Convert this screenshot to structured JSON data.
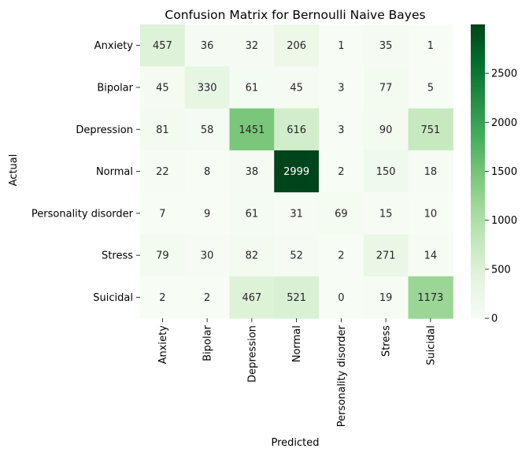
{
  "chart_data": {
    "type": "heatmap",
    "title": "Confusion Matrix for Bernoulli Naive Bayes",
    "xlabel": "Predicted",
    "ylabel": "Actual",
    "x_categories": [
      "Anxiety",
      "Bipolar",
      "Depression",
      "Normal",
      "Personality disorder",
      "Stress",
      "Suicidal"
    ],
    "y_categories": [
      "Anxiety",
      "Bipolar",
      "Depression",
      "Normal",
      "Personality disorder",
      "Stress",
      "Suicidal"
    ],
    "values": [
      [
        457,
        36,
        32,
        206,
        1,
        35,
        1
      ],
      [
        45,
        330,
        61,
        45,
        3,
        77,
        5
      ],
      [
        81,
        58,
        1451,
        616,
        3,
        90,
        751
      ],
      [
        22,
        8,
        38,
        2999,
        2,
        150,
        18
      ],
      [
        7,
        9,
        61,
        31,
        69,
        15,
        10
      ],
      [
        79,
        30,
        82,
        52,
        2,
        271,
        14
      ],
      [
        2,
        2,
        467,
        521,
        0,
        19,
        1173
      ]
    ],
    "colormap": "Greens",
    "color_min": 0,
    "color_max": 2999,
    "colorbar_ticks": [
      0,
      500,
      1000,
      1500,
      2000,
      2500
    ]
  }
}
